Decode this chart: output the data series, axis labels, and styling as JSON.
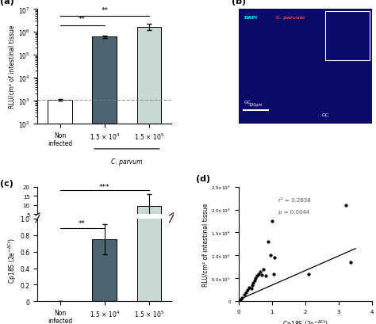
{
  "panel_a": {
    "values": [
      1100,
      620000,
      1700000
    ],
    "errors": [
      100,
      60000,
      500000
    ],
    "colors": [
      "white",
      "#4a6470",
      "#c8d8d4"
    ],
    "ylabel": "RLU/cm² of intestinal tissue",
    "ylim_log": [
      100,
      10000000.0
    ],
    "dashed_line": 1100,
    "label": "(a)"
  },
  "panel_c": {
    "values": [
      0.0,
      0.75,
      9.5
    ],
    "errors": [
      0.0,
      0.18,
      6.5
    ],
    "colors": [
      "white",
      "#4a6470",
      "#c8d8d4"
    ],
    "ylabel": "Cp18S (2e$^{-ΔCt}$)",
    "label": "(c)"
  },
  "panel_d": {
    "x": [
      0.05,
      0.1,
      0.18,
      0.22,
      0.28,
      0.32,
      0.38,
      0.42,
      0.45,
      0.48,
      0.52,
      0.55,
      0.6,
      0.65,
      0.7,
      0.75,
      0.82,
      0.88,
      0.95,
      1.0,
      1.05,
      1.08,
      2.1,
      3.2,
      3.35
    ],
    "y": [
      30000,
      80000,
      150000,
      200000,
      250000,
      300000,
      280000,
      350000,
      400000,
      450000,
      500000,
      560000,
      600000,
      650000,
      580000,
      700000,
      550000,
      1300000,
      1000000,
      1750000,
      600000,
      950000,
      600000,
      2100000,
      850000
    ],
    "r2_text": "r² = 0.2638",
    "p_text": "p = 0.0044",
    "xlabel": "Cp18S (2e$^{-ΔCt}$)",
    "ylabel": "RLU/cm² of intestinal tissue",
    "xlim": [
      0,
      4
    ],
    "ylim": [
      0,
      2500000
    ],
    "line_x": [
      0,
      3.5
    ],
    "line_y": [
      30000,
      1150000
    ],
    "label": "(d)"
  }
}
